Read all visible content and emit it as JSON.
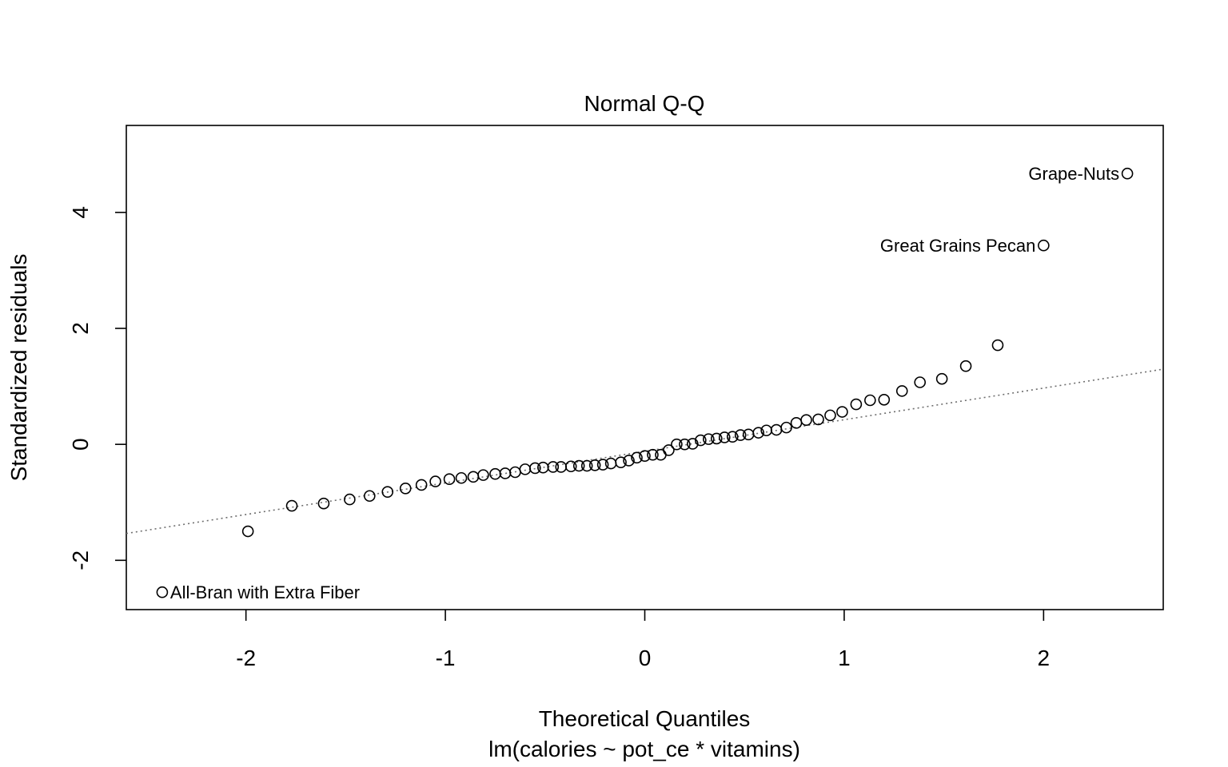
{
  "chart_data": {
    "type": "scatter",
    "title": "Normal Q-Q",
    "xlabel": "Theoretical Quantiles",
    "ylabel": "Standardized residuals",
    "subtitle": "lm(calories ~ pot_ce * vitamins)",
    "xlim": [
      -2.6,
      2.6
    ],
    "ylim": [
      -2.85,
      5.5
    ],
    "x_ticks": [
      -2,
      -1,
      0,
      1,
      2
    ],
    "y_ticks": [
      -2,
      0,
      2,
      4
    ],
    "x_tick_labels": [
      "-2",
      "-1",
      "0",
      "1",
      "2"
    ],
    "y_tick_labels": [
      "-2",
      "0",
      "2",
      "4"
    ],
    "grid": false,
    "reference_line": {
      "slope": 0.545,
      "intercept": -0.12,
      "style": "dotted"
    },
    "points": {
      "x": [
        -2.42,
        -1.99,
        -1.77,
        -1.61,
        -1.48,
        -1.38,
        -1.29,
        -1.2,
        -1.12,
        -1.05,
        -0.98,
        -0.92,
        -0.86,
        -0.81,
        -0.75,
        -0.7,
        -0.65,
        -0.6,
        -0.55,
        -0.51,
        -0.46,
        -0.42,
        -0.37,
        -0.33,
        -0.29,
        -0.25,
        -0.21,
        -0.17,
        -0.12,
        -0.08,
        -0.04,
        0.0,
        0.04,
        0.08,
        0.12,
        0.16,
        0.2,
        0.24,
        0.28,
        0.32,
        0.36,
        0.4,
        0.44,
        0.48,
        0.52,
        0.57,
        0.61,
        0.66,
        0.71,
        0.76,
        0.81,
        0.87,
        0.93,
        0.99,
        1.06,
        1.13,
        1.2,
        1.29,
        1.38,
        1.49,
        1.61,
        1.77,
        2.0,
        2.42
      ],
      "y": [
        -2.55,
        -1.5,
        -1.06,
        -1.02,
        -0.95,
        -0.89,
        -0.82,
        -0.76,
        -0.7,
        -0.64,
        -0.6,
        -0.58,
        -0.56,
        -0.53,
        -0.51,
        -0.5,
        -0.48,
        -0.43,
        -0.41,
        -0.4,
        -0.39,
        -0.39,
        -0.38,
        -0.37,
        -0.37,
        -0.36,
        -0.35,
        -0.33,
        -0.31,
        -0.28,
        -0.23,
        -0.2,
        -0.18,
        -0.18,
        -0.1,
        0.0,
        0.0,
        0.01,
        0.07,
        0.09,
        0.1,
        0.12,
        0.13,
        0.16,
        0.17,
        0.2,
        0.24,
        0.25,
        0.29,
        0.37,
        0.42,
        0.43,
        0.5,
        0.56,
        0.69,
        0.76,
        0.77,
        0.92,
        1.07,
        1.13,
        1.35,
        1.71,
        3.43,
        4.67
      ]
    },
    "annotations": [
      {
        "label": "All-Bran with Extra Fiber",
        "x": -2.42,
        "y": -2.55,
        "side": "right"
      },
      {
        "label": "Great Grains Pecan",
        "x": 2.0,
        "y": 3.43,
        "side": "left"
      },
      {
        "label": "Grape-Nuts",
        "x": 2.42,
        "y": 4.67,
        "side": "left"
      }
    ]
  }
}
